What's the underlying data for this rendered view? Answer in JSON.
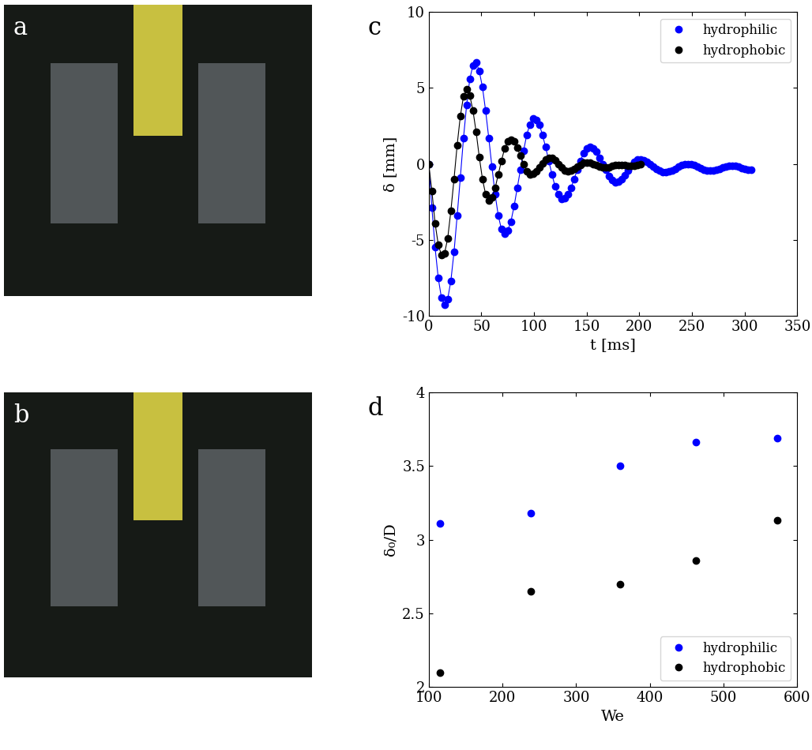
{
  "images": [
    {
      "panel_label": "a"
    },
    {
      "panel_label": "b"
    }
  ],
  "chart_data": [
    {
      "type": "line",
      "panel_label": "c",
      "x_label": "t [ms]",
      "y_label": "δ [mm]",
      "xlim": [
        0,
        350
      ],
      "xticks": [
        0,
        50,
        100,
        150,
        200,
        250,
        300,
        350
      ],
      "ylim": [
        -10,
        10
      ],
      "yticks": [
        -10,
        -5,
        0,
        5,
        10
      ],
      "legend": "upper right",
      "marker": "o",
      "line_style": "solid",
      "series": [
        {
          "name": "hydrophilic",
          "color": "#0000ff",
          "x": [
            0,
            3,
            6,
            9,
            12,
            15,
            18,
            21,
            24,
            27,
            30,
            33,
            36,
            39,
            42,
            45,
            48,
            51,
            54,
            57,
            60,
            63,
            66,
            69,
            72,
            75,
            78,
            81,
            84,
            87,
            90,
            93,
            96,
            99,
            102,
            105,
            108,
            111,
            114,
            117,
            120,
            123,
            126,
            129,
            132,
            135,
            138,
            141,
            144,
            147,
            150,
            153,
            156,
            159,
            162,
            165,
            168,
            171,
            174,
            177,
            180,
            183,
            186,
            189,
            192,
            195,
            198,
            201,
            204,
            207,
            210,
            213,
            216,
            219,
            222,
            225,
            228,
            231,
            234,
            237,
            240,
            243,
            246,
            249,
            252,
            255,
            258,
            261,
            264,
            267,
            270,
            273,
            276,
            279,
            282,
            285,
            288,
            291,
            294,
            297,
            300,
            303,
            306
          ],
          "values": [
            0,
            -2.9,
            -5.5,
            -7.5,
            -8.8,
            -9.3,
            -8.9,
            -7.7,
            -5.8,
            -3.4,
            -0.9,
            1.7,
            3.9,
            5.6,
            6.5,
            6.7,
            6.1,
            5.05,
            3.5,
            1.7,
            -0.2,
            -2.0,
            -3.4,
            -4.3,
            -4.6,
            -4.4,
            -3.8,
            -2.8,
            -1.6,
            -0.4,
            0.85,
            1.9,
            2.6,
            3.0,
            2.9,
            2.6,
            1.9,
            1.1,
            0.2,
            -0.7,
            -1.5,
            -2.0,
            -2.3,
            -2.25,
            -2.0,
            -1.6,
            -1.0,
            -0.4,
            0.2,
            0.7,
            1.0,
            1.1,
            1.0,
            0.8,
            0.4,
            0.0,
            -0.4,
            -0.8,
            -1.05,
            -1.2,
            -1.17,
            -1.0,
            -0.76,
            -0.45,
            -0.14,
            0.12,
            0.27,
            0.3,
            0.24,
            0.13,
            -0.01,
            -0.18,
            -0.34,
            -0.46,
            -0.54,
            -0.55,
            -0.51,
            -0.42,
            -0.31,
            -0.2,
            -0.1,
            -0.02,
            0.0,
            -0.02,
            -0.1,
            -0.2,
            -0.29,
            -0.37,
            -0.43,
            -0.45,
            -0.44,
            -0.39,
            -0.31,
            -0.22,
            -0.16,
            -0.13,
            -0.12,
            -0.14,
            -0.2,
            -0.27,
            -0.33,
            -0.36,
            -0.38
          ]
        },
        {
          "name": "hydrophobic",
          "color": "#000000",
          "x": [
            0,
            3,
            6,
            9,
            12,
            15,
            18,
            21,
            24,
            27,
            30,
            33,
            36,
            39,
            42,
            45,
            48,
            51,
            54,
            57,
            60,
            63,
            66,
            69,
            72,
            75,
            78,
            81,
            84,
            87,
            90,
            93,
            96,
            99,
            102,
            105,
            108,
            111,
            114,
            117,
            120,
            123,
            126,
            129,
            132,
            135,
            138,
            141,
            144,
            147,
            150,
            153,
            156,
            159,
            162,
            165,
            168,
            171,
            174,
            177,
            180,
            183,
            186,
            189,
            192,
            195,
            198,
            201
          ],
          "values": [
            0,
            -1.8,
            -3.9,
            -5.3,
            -6.0,
            -5.9,
            -4.9,
            -3.1,
            -1.0,
            1.25,
            3.15,
            4.45,
            4.9,
            4.5,
            3.5,
            2.1,
            0.44,
            -1.0,
            -2.0,
            -2.4,
            -2.2,
            -1.6,
            -0.7,
            0.2,
            1.0,
            1.5,
            1.6,
            1.46,
            1.05,
            0.54,
            0.0,
            -0.47,
            -0.68,
            -0.67,
            -0.51,
            -0.25,
            0.04,
            0.27,
            0.39,
            0.37,
            0.22,
            -0.01,
            -0.25,
            -0.43,
            -0.5,
            -0.46,
            -0.35,
            -0.2,
            -0.05,
            0.06,
            0.1,
            0.07,
            0.0,
            -0.09,
            -0.17,
            -0.23,
            -0.25,
            -0.22,
            -0.15,
            -0.09,
            -0.05,
            -0.06,
            -0.1,
            -0.14,
            -0.15,
            -0.12,
            -0.06,
            -0.02
          ]
        }
      ]
    },
    {
      "type": "scatter",
      "panel_label": "d",
      "x_label": "We",
      "y_label": "δ₀/D",
      "xlim": [
        100,
        600
      ],
      "xticks": [
        100,
        200,
        300,
        400,
        500,
        600
      ],
      "ylim": [
        2,
        4
      ],
      "yticks": [
        2,
        2.5,
        3,
        3.5,
        4
      ],
      "legend": "lower right",
      "marker": "o",
      "x": [
        115,
        238,
        360,
        462,
        573
      ],
      "series": [
        {
          "name": "hydrophilic",
          "color": "#0000ff",
          "values": [
            3.11,
            3.18,
            3.5,
            3.66,
            3.69
          ]
        },
        {
          "name": "hydrophobic",
          "color": "#000000",
          "values": [
            2.1,
            2.65,
            2.7,
            2.86,
            3.13
          ]
        }
      ]
    }
  ]
}
